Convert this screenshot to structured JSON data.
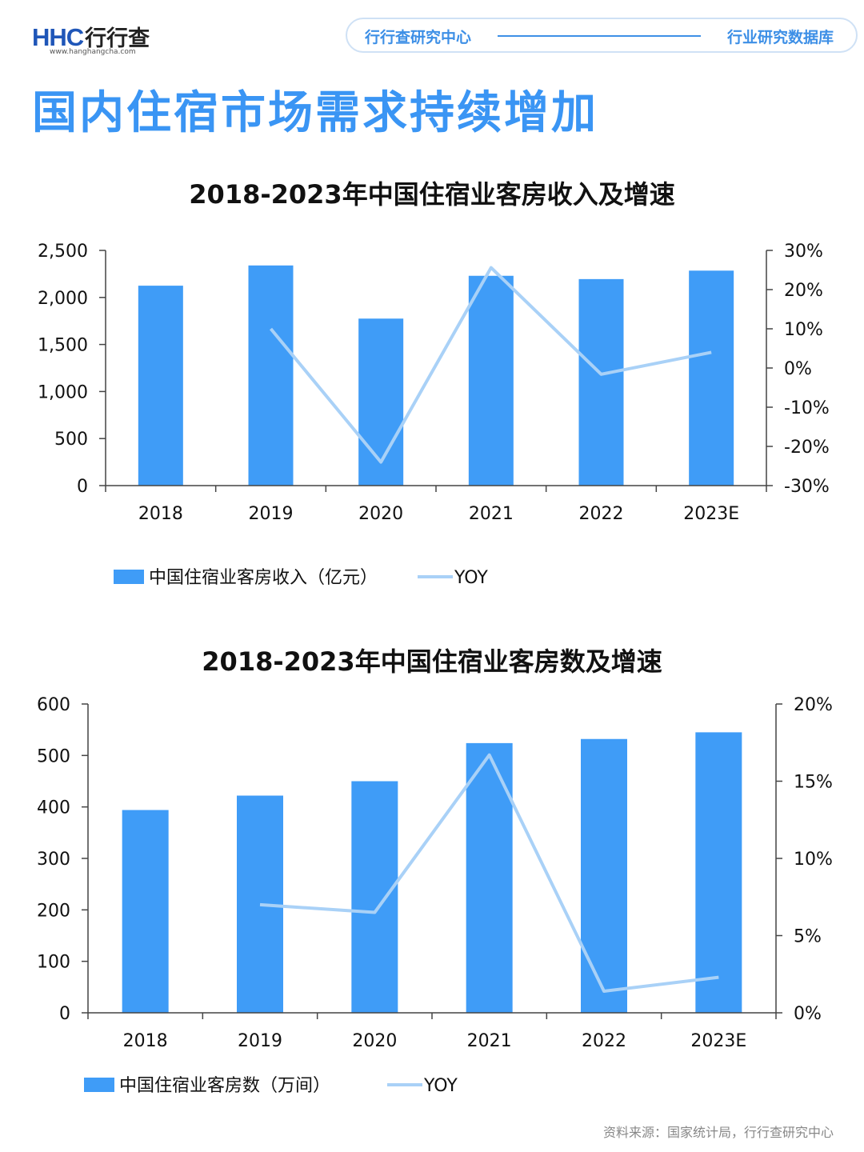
{
  "header": {
    "logo_mark": "HHC",
    "logo_name": "行行查",
    "logo_url": "www.hanghangcha.com",
    "left_label": "行行查研究中心",
    "right_label": "行业研究数据库"
  },
  "page_title": "国内住宿市场需求持续增加",
  "source": "资料来源：国家统计局，行行查研究中心",
  "colors": {
    "bar": "#3f9cf7",
    "line": "#a9d1f7",
    "title": "#3a95f4",
    "accent": "#3d8fe6"
  },
  "chart_data": [
    {
      "type": "bar",
      "title": "2018-2023年中国住宿业客房收入及增速",
      "categories": [
        "2018",
        "2019",
        "2020",
        "2021",
        "2022",
        "2023E"
      ],
      "series": [
        {
          "name": "中国住宿业客房收入（亿元）",
          "type": "bar",
          "axis": "left",
          "values": [
            2125,
            2340,
            1775,
            2230,
            2195,
            2285
          ]
        },
        {
          "name": "YOY",
          "type": "line",
          "axis": "right",
          "values": [
            null,
            10.0,
            -24.0,
            25.6,
            -1.6,
            4.0
          ]
        }
      ],
      "left_axis": {
        "min": 0,
        "max": 2500,
        "ticks": [
          "0",
          "500",
          "1,000",
          "1,500",
          "2,000",
          "2,500"
        ]
      },
      "right_axis": {
        "min": -30,
        "max": 30,
        "ticks": [
          "-30%",
          "-20%",
          "-10%",
          "0%",
          "10%",
          "20%",
          "30%"
        ]
      },
      "legend_position": "bottom-left"
    },
    {
      "type": "bar",
      "title": "2018-2023年中国住宿业客房数及增速",
      "categories": [
        "2018",
        "2019",
        "2020",
        "2021",
        "2022",
        "2023E"
      ],
      "series": [
        {
          "name": "中国住宿业客房数（万间）",
          "type": "bar",
          "axis": "left",
          "values": [
            394,
            422,
            450,
            524,
            532,
            545
          ]
        },
        {
          "name": "YOY",
          "type": "line",
          "axis": "right",
          "values": [
            null,
            7.0,
            6.5,
            16.7,
            1.4,
            2.3
          ]
        }
      ],
      "left_axis": {
        "min": 0,
        "max": 600,
        "ticks": [
          "0",
          "100",
          "200",
          "300",
          "400",
          "500",
          "600"
        ]
      },
      "right_axis": {
        "min": 0,
        "max": 20,
        "ticks": [
          "0%",
          "5%",
          "10%",
          "15%",
          "20%"
        ]
      },
      "legend_position": "bottom-left"
    }
  ]
}
